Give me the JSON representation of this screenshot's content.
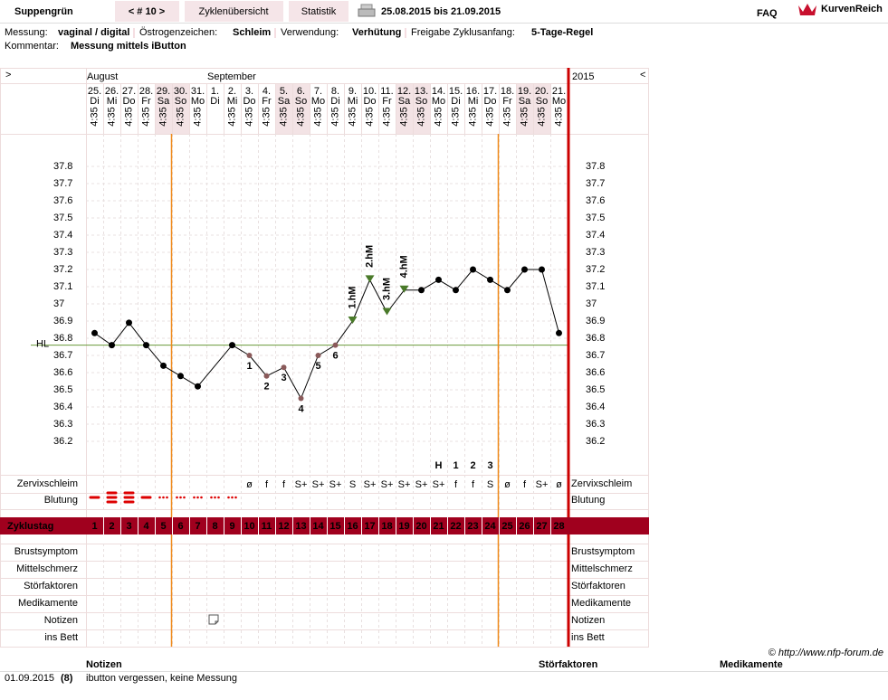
{
  "header": {
    "name": "Suppengrün",
    "cycle": "< # 10 >",
    "tabs": [
      "Zyklenübersicht",
      "Statistik"
    ],
    "range": "25.08.2015 bis 21.09.2015",
    "faq": "FAQ",
    "brand": "KurvenReich"
  },
  "info": {
    "rows": [
      [
        {
          "label": "Messung:",
          "value": "vaginal / digital"
        },
        {
          "label": "Östrogenzeichen:",
          "value": "Schleim"
        },
        {
          "label": "Verwendung:",
          "value": "Verhütung"
        },
        {
          "label": "Freigabe Zyklusanfang:",
          "value": "5-Tage-Regel"
        }
      ],
      [
        {
          "label": "Kommentar:",
          "value": "Messung mittels iButton"
        }
      ]
    ]
  },
  "chart_data": {
    "type": "line",
    "nav_left": ">",
    "nav_right": "<",
    "year": "2015",
    "months": [
      "August",
      null,
      null,
      null,
      null,
      null,
      null,
      "September",
      null,
      null,
      null,
      null,
      null,
      null,
      null,
      null,
      null,
      null,
      null,
      null,
      null,
      null,
      null,
      null,
      null,
      null,
      null,
      null
    ],
    "categories": [
      "25.",
      "26.",
      "27.",
      "28.",
      "29.",
      "30.",
      "31.",
      "1.",
      "2.",
      "3.",
      "4.",
      "5.",
      "6.",
      "7.",
      "8.",
      "9.",
      "10.",
      "11.",
      "12.",
      "13.",
      "14.",
      "15.",
      "16.",
      "17.",
      "18.",
      "19.",
      "20.",
      "21."
    ],
    "weekdays": [
      "Di",
      "Mi",
      "Do",
      "Fr",
      "Sa",
      "So",
      "Mo",
      "Di",
      "Mi",
      "Do",
      "Fr",
      "Sa",
      "So",
      "Mo",
      "Di",
      "Mi",
      "Do",
      "Fr",
      "Sa",
      "So",
      "Mo",
      "Di",
      "Mi",
      "Do",
      "Fr",
      "Sa",
      "So",
      "Mo"
    ],
    "times": [
      "4:35",
      "4:35",
      "4:35",
      "4:35",
      "4:35",
      "4:35",
      "4:35",
      null,
      "4:35",
      "4:35",
      "4:35",
      "4:35",
      "4:35",
      "4:35",
      "4:35",
      "4:35",
      "4:35",
      "4:35",
      "4:35",
      "4:35",
      "4:35",
      "4:35",
      "4:35",
      "4:35",
      "4:35",
      "4:35",
      "4:35",
      "4:35"
    ],
    "values": [
      36.83,
      36.76,
      36.89,
      36.76,
      36.64,
      36.58,
      36.52,
      null,
      36.76,
      36.7,
      36.58,
      36.63,
      36.45,
      36.7,
      36.76,
      36.9,
      37.14,
      36.95,
      37.08,
      37.08,
      37.14,
      37.08,
      37.2,
      37.14,
      37.08,
      37.2,
      37.2,
      36.83
    ],
    "color": "#000000",
    "low_labels": [
      null,
      null,
      null,
      null,
      null,
      null,
      null,
      null,
      null,
      "1",
      "2",
      "3",
      "4",
      "5",
      "6",
      null,
      null,
      null,
      null,
      null,
      null,
      null,
      null,
      null,
      null,
      null,
      null,
      null
    ],
    "high_labels": [
      null,
      null,
      null,
      null,
      null,
      null,
      null,
      null,
      null,
      null,
      null,
      null,
      null,
      null,
      null,
      "1.hM",
      "2.hM",
      "3.hM",
      "4.hM",
      null,
      null,
      null,
      null,
      null,
      null,
      null,
      null,
      null
    ],
    "coverline": {
      "label": "HL",
      "value": 36.76,
      "color": "#6a9a3a"
    },
    "ylim": [
      36.0,
      38.0
    ],
    "yticks": [
      36.2,
      36.3,
      36.4,
      36.5,
      36.6,
      36.7,
      36.8,
      36.9,
      37,
      37.1,
      37.2,
      37.3,
      37.4,
      37.5,
      37.6,
      37.7,
      37.8
    ],
    "grid": true,
    "mucus_markers": [
      null,
      null,
      null,
      null,
      null,
      null,
      null,
      null,
      null,
      null,
      null,
      null,
      null,
      null,
      null,
      null,
      null,
      null,
      null,
      null,
      "H",
      "1",
      "2",
      "3",
      null,
      null,
      null,
      null
    ],
    "cervix_label": "Zervixschleim",
    "cervix": [
      null,
      null,
      null,
      null,
      null,
      null,
      null,
      null,
      null,
      "ø",
      "f",
      "f",
      "S+",
      "S+",
      "S+",
      "S",
      "S+",
      "S+",
      "S+",
      "S+",
      "S+",
      "f",
      "f",
      "S",
      "ø",
      "f",
      "S+",
      "ø"
    ],
    "bleeding_label": "Blutung",
    "cycle_day_label": "Zyklustag",
    "cycle_days": [
      1,
      2,
      3,
      4,
      5,
      6,
      7,
      8,
      9,
      10,
      11,
      12,
      13,
      14,
      15,
      16,
      17,
      18,
      19,
      20,
      21,
      22,
      23,
      24,
      25,
      26,
      27,
      28
    ],
    "other_rows": [
      "Brustsymptom",
      "Mittelschmerz",
      "Störfaktoren",
      "Medikamente",
      "Notizen",
      "ins Bett"
    ]
  },
  "footer": {
    "copyright": "© http://www.nfp-forum.de",
    "table": {
      "headers": [
        "Notizen",
        "Störfaktoren",
        "Medikamente"
      ],
      "rows": [
        [
          "01.09.2015",
          "(8)",
          "ibutton vergessen, keine Messung"
        ]
      ]
    }
  }
}
